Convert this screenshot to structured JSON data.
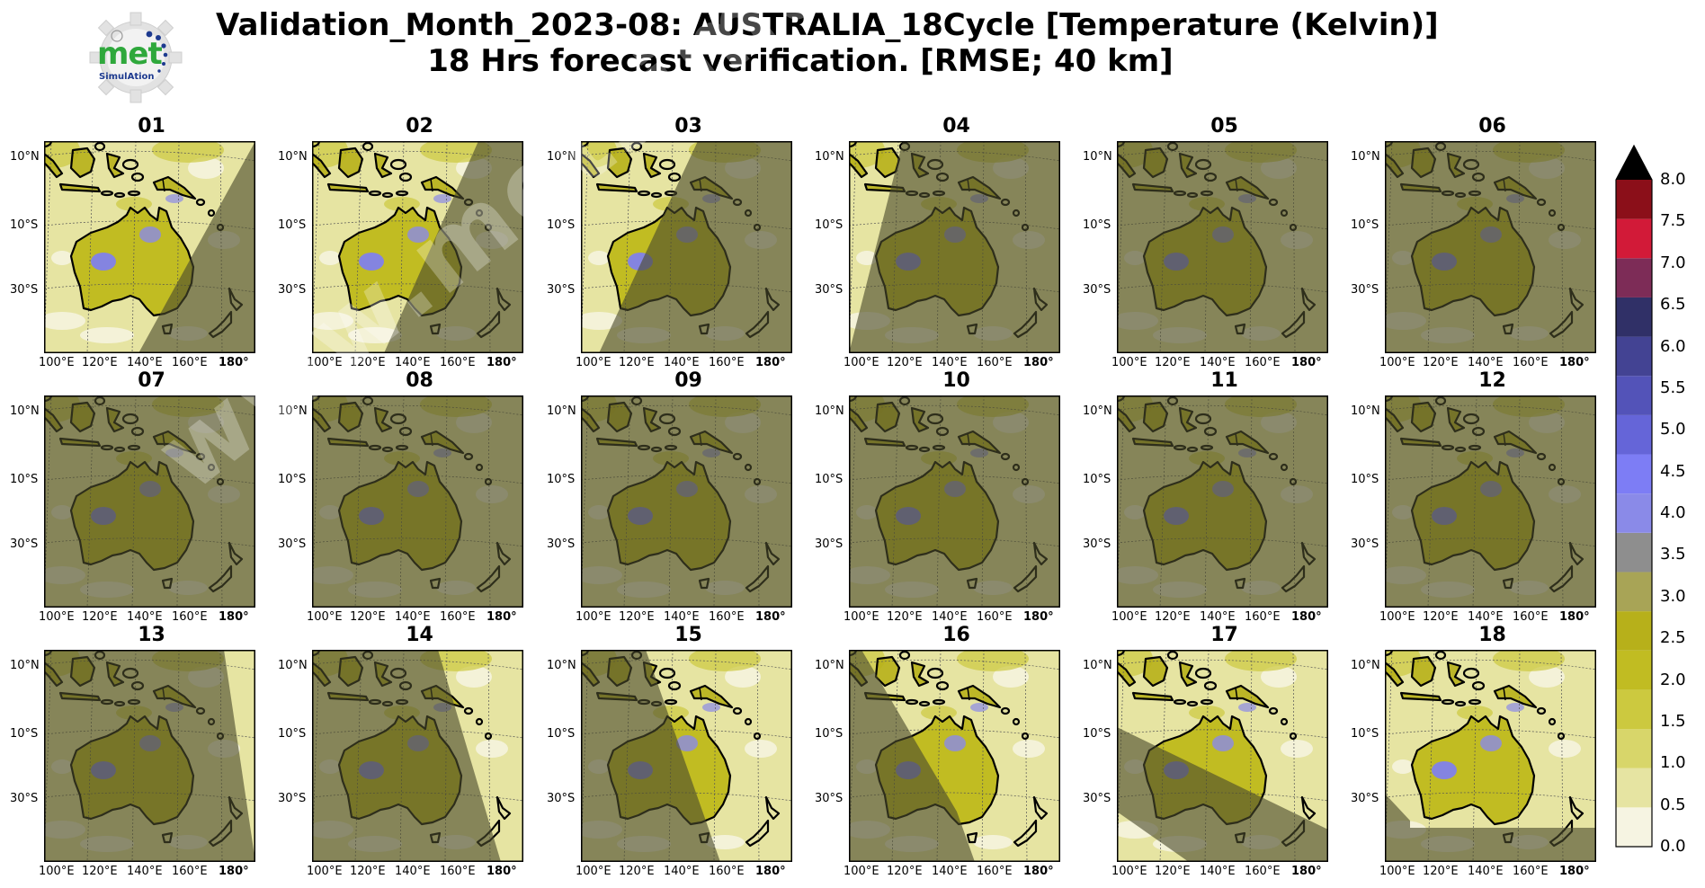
{
  "title_line1": "Validation_Month_2023-08: AUSTRALIA_18Cycle [Temperature (Kelvin)]",
  "title_line2": "18 Hrs forecast verification.  [RMSE; 40 km]",
  "logo": {
    "text_main": "met",
    "text_sub": "SimulAtion",
    "accent_color": "#2fa83c",
    "dot_color": "#1d3a8f"
  },
  "watermark_text": "www.metsimulation.com",
  "chart_data": {
    "type": "heatmap",
    "title": "Validation_Month_2023-08: AUSTRALIA_18Cycle [Temperature (Kelvin)] 18 Hrs forecast verification. [RMSE; 40 km]",
    "variable": "Temperature (Kelvin)",
    "metric": "RMSE",
    "resolution": "40 km",
    "panels": [
      "01",
      "02",
      "03",
      "04",
      "05",
      "06",
      "07",
      "08",
      "09",
      "10",
      "11",
      "12",
      "13",
      "14",
      "15",
      "16",
      "17",
      "18"
    ],
    "x_ticks": [
      "100°E",
      "120°E",
      "140°E",
      "160°E",
      "180°"
    ],
    "y_ticks": [
      "10°N",
      "10°S",
      "30°S"
    ],
    "colorbar": {
      "range": [
        0.0,
        8.0
      ],
      "ticks": [
        "0.0",
        "0.5",
        "1.0",
        "1.5",
        "2.0",
        "2.5",
        "3.0",
        "3.5",
        "4.0",
        "4.5",
        "5.0",
        "5.5",
        "6.0",
        "6.5",
        "7.0",
        "7.5",
        "8.0"
      ],
      "extend": "max",
      "colors": [
        "#f6f4e2",
        "#e6e4a2",
        "#d8d66a",
        "#ccc93f",
        "#c1bc22",
        "#b7b01a",
        "#a8a456",
        "#8e8e8e",
        "#8a8ae8",
        "#7d7df5",
        "#6565d8",
        "#5353b8",
        "#434393",
        "#303067",
        "#7d2c57",
        "#d21a38",
        "#8b0f19"
      ],
      "extend_color": "#000000"
    },
    "night_shading": [
      {
        "panel": "01",
        "shade": "east"
      },
      {
        "panel": "02",
        "shade": "east"
      },
      {
        "panel": "03",
        "shade": "east"
      },
      {
        "panel": "04",
        "shade": "east"
      },
      {
        "panel": "05",
        "shade": "all"
      },
      {
        "panel": "06",
        "shade": "all"
      },
      {
        "panel": "07",
        "shade": "all"
      },
      {
        "panel": "08",
        "shade": "all"
      },
      {
        "panel": "09",
        "shade": "all"
      },
      {
        "panel": "10",
        "shade": "all"
      },
      {
        "panel": "11",
        "shade": "all"
      },
      {
        "panel": "12",
        "shade": "all"
      },
      {
        "panel": "13",
        "shade": "west"
      },
      {
        "panel": "14",
        "shade": "west"
      },
      {
        "panel": "15",
        "shade": "west"
      },
      {
        "panel": "16",
        "shade": "west"
      },
      {
        "panel": "17",
        "shade": "west"
      },
      {
        "panel": "18",
        "shade": "south"
      }
    ]
  }
}
